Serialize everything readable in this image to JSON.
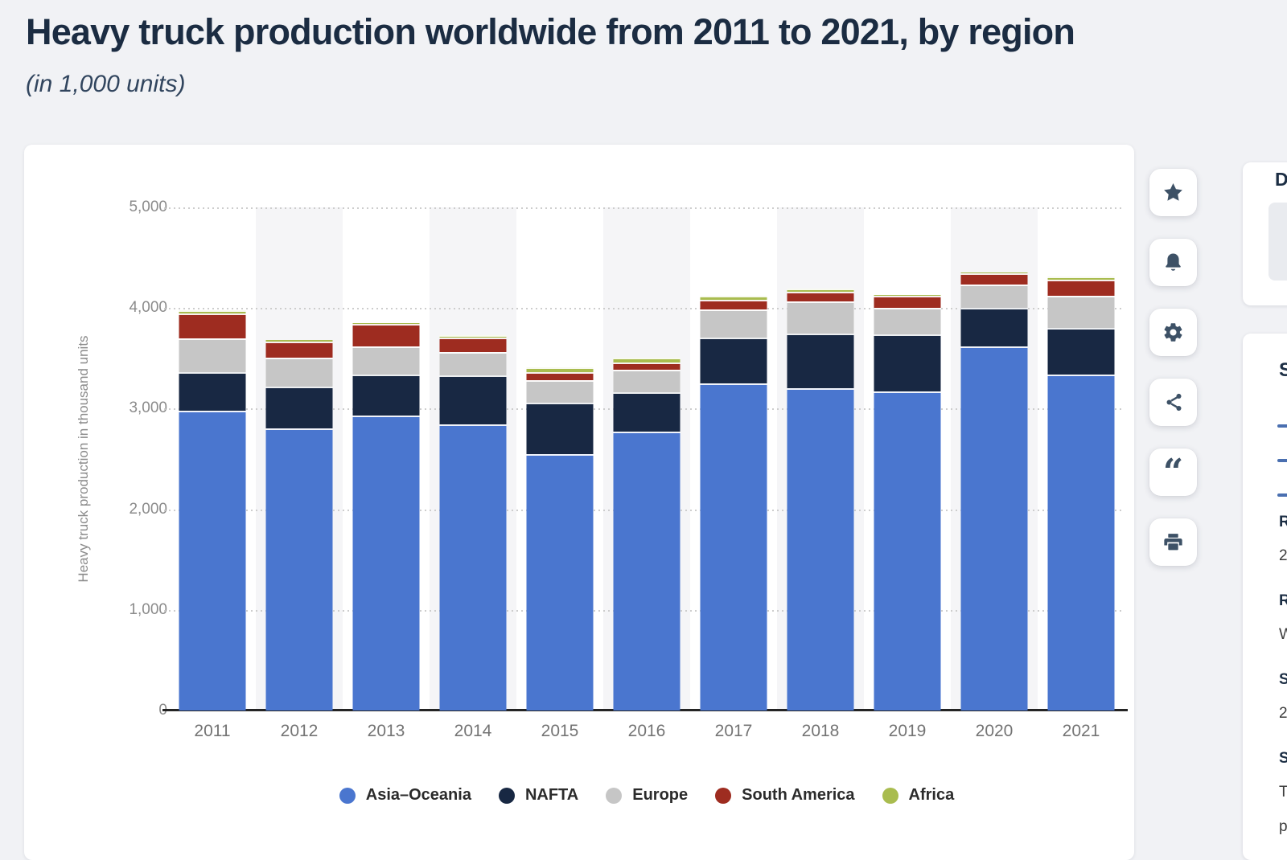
{
  "page": {
    "title": "Heavy truck production worldwide from 2011 to 2021, by region",
    "subtitle": "(in 1,000 units)"
  },
  "chart_data": {
    "type": "bar",
    "stacked": true,
    "title": "Heavy truck production worldwide from 2011 to 2021, by region",
    "subtitle": "(in 1,000 units)",
    "categories": [
      "2011",
      "2012",
      "2013",
      "2014",
      "2015",
      "2016",
      "2017",
      "2018",
      "2019",
      "2020",
      "2021"
    ],
    "series": [
      {
        "name": "Asia–Oceania",
        "color": "#4a76cf",
        "values": [
          2980,
          2800,
          2935,
          2845,
          2550,
          2770,
          3250,
          3200,
          3170,
          3620,
          3340
        ]
      },
      {
        "name": "NAFTA",
        "color": "#182843",
        "values": [
          385,
          420,
          400,
          485,
          510,
          395,
          460,
          550,
          565,
          380,
          465
        ]
      },
      {
        "name": "Europe",
        "color": "#c6c6c6",
        "values": [
          330,
          290,
          280,
          235,
          225,
          220,
          275,
          315,
          265,
          235,
          315
        ]
      },
      {
        "name": "South America",
        "color": "#9e2c20",
        "values": [
          255,
          155,
          230,
          140,
          80,
          75,
          95,
          95,
          125,
          110,
          160
        ]
      },
      {
        "name": "Africa",
        "color": "#a9bc4f",
        "values": [
          25,
          20,
          5,
          25,
          45,
          45,
          45,
          35,
          5,
          5,
          30
        ]
      }
    ],
    "ylabel": "Heavy truck production in thousand units",
    "yticks": [
      "5,000",
      "4,000",
      "3,000",
      "2,000",
      "1,000",
      "0"
    ],
    "ylim": [
      0,
      5000
    ],
    "grid": "dotted horizontal gridlines at every 1,000",
    "plot_bands": "light gray vertical band behind every second year (2012, 2014, 2016, 2018, 2020)",
    "legend_position": "bottom"
  },
  "toolbar": {
    "buttons": [
      "star",
      "bell",
      "gear",
      "share",
      "quote",
      "print"
    ]
  },
  "side_panel": {
    "download_heading_fragment": "D",
    "sources_heading_fragment": "S",
    "source_link_count": 3,
    "details": [
      {
        "label_fragment": "R",
        "value_lines": [
          "2"
        ]
      },
      {
        "label_fragment": "R",
        "value_lines": [
          "W"
        ]
      },
      {
        "label_fragment": "S",
        "value_lines": [
          "2"
        ]
      },
      {
        "label_fragment": "S",
        "value_lines": [
          "T",
          "p"
        ]
      }
    ]
  }
}
